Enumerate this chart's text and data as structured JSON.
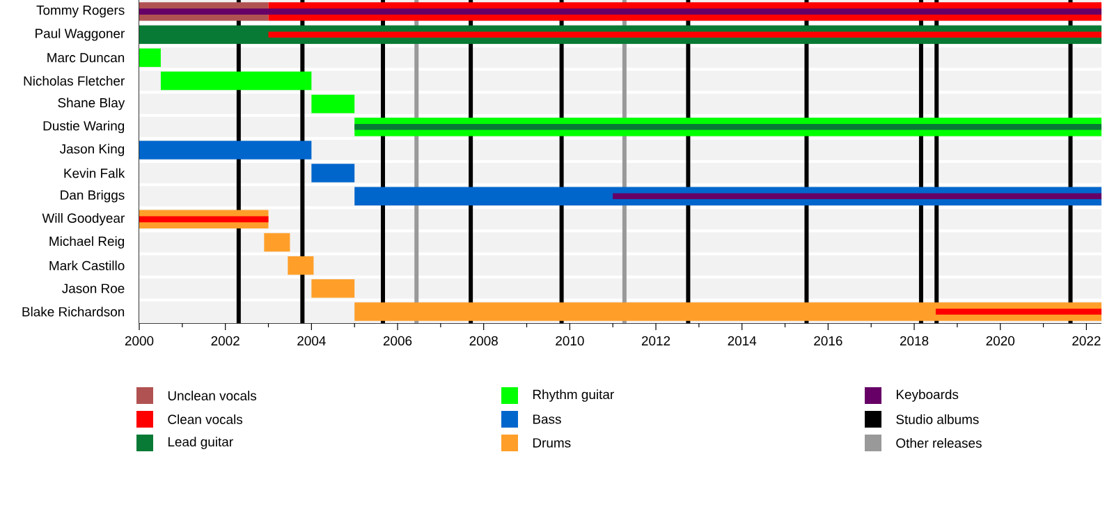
{
  "chart_data": {
    "type": "bar",
    "orientation": "horizontal",
    "legend": "bottom",
    "categories": [
      "Tommy Rogers",
      "Paul Waggoner",
      "Marc Duncan",
      "Nicholas Fletcher",
      "Shane Blay",
      "Dustie Waring",
      "Jason King",
      "Kevin Falk",
      "Dan Briggs",
      "Will Goodyear",
      "Michael Reig",
      "Mark Castillo",
      "Jason Roe",
      "Blake Richardson"
    ],
    "xlim": [
      2000,
      2022.35
    ],
    "xticks": [
      2000,
      {
        "value": 2001,
        "label": null
      },
      2002,
      {
        "value": 2003,
        "label": null
      },
      2004,
      {
        "value": 2005,
        "label": null
      },
      2006,
      {
        "value": 2007,
        "label": null
      },
      2008,
      {
        "value": 2009,
        "label": null
      },
      2010,
      {
        "value": 2011,
        "label": null
      },
      2012,
      {
        "value": 2013,
        "label": null
      },
      2014,
      {
        "value": 2015,
        "label": null
      },
      2016,
      {
        "value": 2017,
        "label": null
      },
      2018,
      {
        "value": 2019,
        "label": null
      },
      2020,
      {
        "value": 2021,
        "label": null
      },
      2022
    ],
    "series": [
      {
        "name": "Unclean vocals",
        "color": "#b15252",
        "base": [
          2000,
          null,
          null,
          null,
          null,
          null,
          null,
          null,
          null,
          null,
          null,
          null,
          null,
          null
        ],
        "values": [
          3,
          null,
          null,
          null,
          null,
          null,
          null,
          null,
          null,
          null,
          null,
          null,
          null,
          null
        ]
      },
      {
        "name": "Clean vocals",
        "color": "#ff0000",
        "base": [
          2003,
          null,
          null,
          null,
          null,
          null,
          null,
          null,
          null,
          null,
          null,
          null,
          null,
          null
        ],
        "values": [
          19.35,
          null,
          null,
          null,
          null,
          null,
          null,
          null,
          null,
          null,
          null,
          null,
          null,
          null
        ]
      },
      {
        "name": "Lead guitar",
        "color": "#087a35",
        "base": [
          null,
          2000,
          null,
          null,
          null,
          null,
          null,
          null,
          null,
          null,
          null,
          null,
          null,
          null
        ],
        "values": [
          null,
          22.35,
          null,
          null,
          null,
          null,
          null,
          null,
          null,
          null,
          null,
          null,
          null,
          null
        ]
      },
      {
        "name": "Rhythm guitar",
        "color": "#00ff00",
        "base": [
          null,
          null,
          2000,
          2000.5,
          2004,
          2005,
          null,
          null,
          null,
          null,
          null,
          null,
          null,
          null
        ],
        "values": [
          null,
          null,
          0.5,
          3.5,
          1,
          17.35,
          null,
          null,
          null,
          null,
          null,
          null,
          null,
          null
        ]
      },
      {
        "name": "Bass",
        "color": "#0066cc",
        "base": [
          null,
          null,
          null,
          null,
          null,
          null,
          2000,
          2004,
          2005,
          null,
          null,
          null,
          null,
          null
        ],
        "values": [
          null,
          null,
          null,
          null,
          null,
          null,
          4,
          1,
          17.35,
          null,
          null,
          null,
          null,
          null
        ]
      },
      {
        "name": "Drums",
        "color": "#ff9f2a",
        "base": [
          null,
          null,
          null,
          null,
          null,
          null,
          null,
          null,
          null,
          2000,
          2002.9,
          2003.45,
          2004,
          2005
        ],
        "values": [
          null,
          null,
          null,
          null,
          null,
          null,
          null,
          null,
          null,
          3,
          0.6,
          0.6,
          1,
          17.35
        ]
      },
      {
        "name": "Keyboards",
        "color": "#660066",
        "base": [
          null,
          null,
          null,
          null,
          null,
          null,
          null,
          null,
          null,
          null,
          null,
          null,
          null,
          null
        ],
        "values": [
          null,
          null,
          null,
          null,
          null,
          null,
          null,
          null,
          null,
          null,
          null,
          null,
          null,
          null
        ]
      },
      {
        "color": "#ff0000",
        "base": [
          null,
          2003,
          null,
          null,
          null,
          null,
          null,
          null,
          null,
          2000,
          null,
          null,
          null,
          2018.5
        ],
        "values": [
          null,
          19.35,
          null,
          null,
          null,
          null,
          null,
          null,
          null,
          3,
          null,
          null,
          null,
          3.85
        ]
      },
      {
        "color": "#087a35",
        "base": [
          null,
          null,
          null,
          null,
          null,
          2005,
          null,
          null,
          null,
          null,
          null,
          null,
          null,
          null
        ],
        "values": [
          null,
          null,
          null,
          null,
          null,
          17.35,
          null,
          null,
          null,
          null,
          null,
          null,
          null,
          null
        ]
      },
      {
        "color": "#660066",
        "base": [
          2000,
          null,
          null,
          null,
          null,
          null,
          null,
          null,
          2011,
          null,
          null,
          null,
          null,
          null
        ],
        "values": [
          22.35,
          null,
          null,
          null,
          null,
          null,
          null,
          null,
          11.35,
          null,
          null,
          null,
          null,
          null
        ]
      }
    ],
    "ref_lines": [
      {
        "axis": "x",
        "value": 2002.31,
        "color": "#000000",
        "label": "Studio albums"
      },
      {
        "axis": "x",
        "value": 2003.79,
        "color": "#000000"
      },
      {
        "axis": "x",
        "value": 2005.66,
        "color": "#000000"
      },
      {
        "axis": "x",
        "value": 2007.7,
        "color": "#000000"
      },
      {
        "axis": "x",
        "value": 2009.81,
        "color": "#000000"
      },
      {
        "axis": "x",
        "value": 2012.75,
        "color": "#000000"
      },
      {
        "axis": "x",
        "value": 2015.5,
        "color": "#000000"
      },
      {
        "axis": "x",
        "value": 2018.16,
        "color": "#000000"
      },
      {
        "axis": "x",
        "value": 2018.52,
        "color": "#000000"
      },
      {
        "axis": "x",
        "value": 2021.63,
        "color": "#000000"
      },
      {
        "axis": "x",
        "value": 2006.44,
        "color": "#999999",
        "label": "Other releases"
      },
      {
        "axis": "x",
        "value": 2011.27,
        "color": "#999999"
      }
    ]
  }
}
